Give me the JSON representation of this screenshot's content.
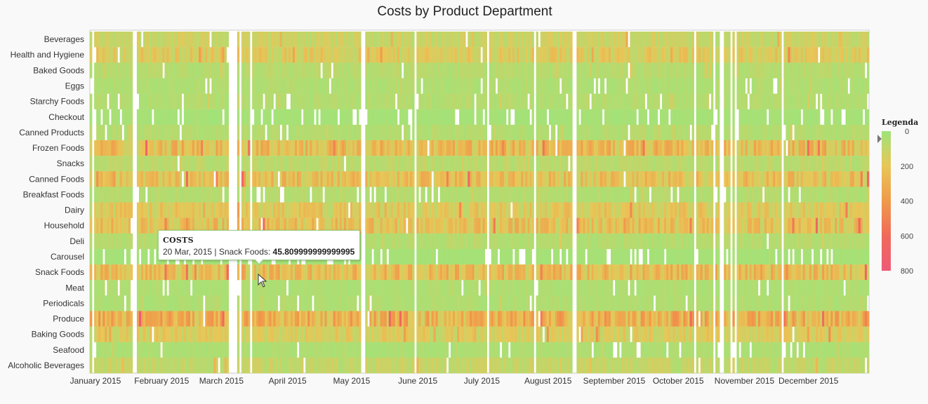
{
  "chart_data": {
    "type": "heatmap",
    "title": "Costs by Product Department",
    "xlabel": "",
    "ylabel": "",
    "x_period": [
      "2015-01-01",
      "2015-12-31"
    ],
    "x_tick_labels": [
      "January 2015",
      "February 2015",
      "March 2015",
      "April 2015",
      "May 2015",
      "June 2015",
      "July 2015",
      "August 2015",
      "September 2015",
      "October 2015",
      "November 2015",
      "December 2015"
    ],
    "x_tick_dates": [
      "2015-01-01",
      "2015-02-01",
      "2015-03-01",
      "2015-04-01",
      "2015-05-01",
      "2015-06-01",
      "2015-07-01",
      "2015-08-01",
      "2015-09-01",
      "2015-10-01",
      "2015-11-01",
      "2015-12-01"
    ],
    "departments": [
      "Beverages",
      "Health and Hygiene",
      "Baked Goods",
      "Eggs",
      "Starchy Foods",
      "Checkout",
      "Canned Products",
      "Frozen Foods",
      "Snacks",
      "Canned Foods",
      "Breakfast Foods",
      "Dairy",
      "Household",
      "Deli",
      "Carousel",
      "Snack Foods",
      "Meat",
      "Periodicals",
      "Produce",
      "Baking Goods",
      "Seafood",
      "Alcoholic Beverages"
    ],
    "typical_daily_cost": [
      110,
      160,
      60,
      45,
      55,
      20,
      55,
      230,
      70,
      210,
      55,
      170,
      210,
      60,
      20,
      230,
      40,
      45,
      270,
      150,
      40,
      95
    ],
    "value_range": [
      0,
      800
    ],
    "color_scale": [
      {
        "value": 0,
        "color": "#9ee47a"
      },
      {
        "value": 200,
        "color": "#e8c657"
      },
      {
        "value": 400,
        "color": "#f09a4a"
      },
      {
        "value": 600,
        "color": "#f06a5a"
      },
      {
        "value": 800,
        "color": "#ee5a78"
      }
    ],
    "legend": {
      "title": "Legenda",
      "ticks": [
        0,
        200,
        400,
        600,
        800
      ],
      "placement": "right"
    },
    "highlight": {
      "label": "COSTS",
      "date": "20 Mar, 2015",
      "department": "Snack Foods",
      "value": 45.809999999999995
    }
  },
  "tooltip": {
    "title": "COSTS",
    "prefix": "20 Mar, 2015 | Snack Foods: ",
    "value": "45.809999999999995"
  }
}
